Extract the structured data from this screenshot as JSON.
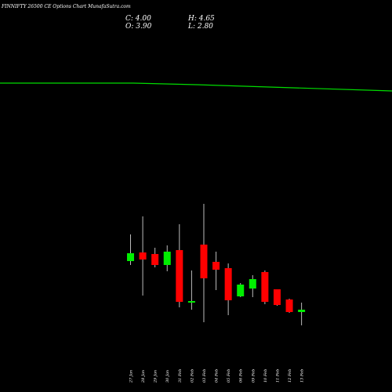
{
  "chart_data": {
    "type": "candlestick",
    "title": "FINNIFTY 26500  CE Options  Chart MunafaSutra.com",
    "ohlc_summary": {
      "c": "C: 4.00",
      "o": "O: 3.90",
      "h": "H: 4.65",
      "l": "L: 2.80"
    },
    "colors": {
      "up": "#00ee00",
      "down": "#ff0000",
      "line": "#00dd00",
      "wick": "#bbbbbb",
      "background": "#000000"
    },
    "ylim": [
      0,
      500
    ],
    "candles": [
      {
        "date": "27 Jan",
        "open": 167,
        "close": 177,
        "high": 201,
        "low": 162
      },
      {
        "date": "28 Jan",
        "open": 178,
        "close": 169,
        "high": 224,
        "low": 123
      },
      {
        "date": "29 Jan",
        "open": 176,
        "close": 162,
        "high": 184,
        "low": 159
      },
      {
        "date": "30 Jan",
        "open": 162,
        "close": 179,
        "high": 187,
        "low": 154
      },
      {
        "date": "31 Feb",
        "open": 181,
        "close": 115,
        "high": 214,
        "low": 108
      },
      {
        "date": "02 Feb",
        "open": 115,
        "close": 116,
        "high": 155,
        "low": 105
      },
      {
        "date": "03 Feb",
        "open": 188,
        "close": 145,
        "high": 240,
        "low": 89
      },
      {
        "date": "04 Feb",
        "open": 166,
        "close": 156,
        "high": 179,
        "low": 130
      },
      {
        "date": "05 Feb",
        "open": 158,
        "close": 117,
        "high": 164,
        "low": 98
      },
      {
        "date": "06 Feb",
        "open": 122,
        "close": 137,
        "high": 139,
        "low": 121
      },
      {
        "date": "09 Feb",
        "open": 132,
        "close": 144,
        "high": 149,
        "low": 121
      },
      {
        "date": "10 Feb",
        "open": 153,
        "close": 115,
        "high": 155,
        "low": 112
      },
      {
        "date": "11 Feb",
        "open": 131,
        "close": 111,
        "high": 131,
        "low": 110
      },
      {
        "date": "12 Feb",
        "open": 118,
        "close": 102,
        "high": 119,
        "low": 101
      },
      {
        "date": "13 Feb",
        "open": 102,
        "close": 105,
        "high": 114,
        "low": 85
      }
    ],
    "line": [
      {
        "x": 0,
        "y": 394
      },
      {
        "x": 0.34,
        "y": 394
      },
      {
        "x": 0.5,
        "y": 392
      },
      {
        "x": 1,
        "y": 384
      }
    ]
  }
}
